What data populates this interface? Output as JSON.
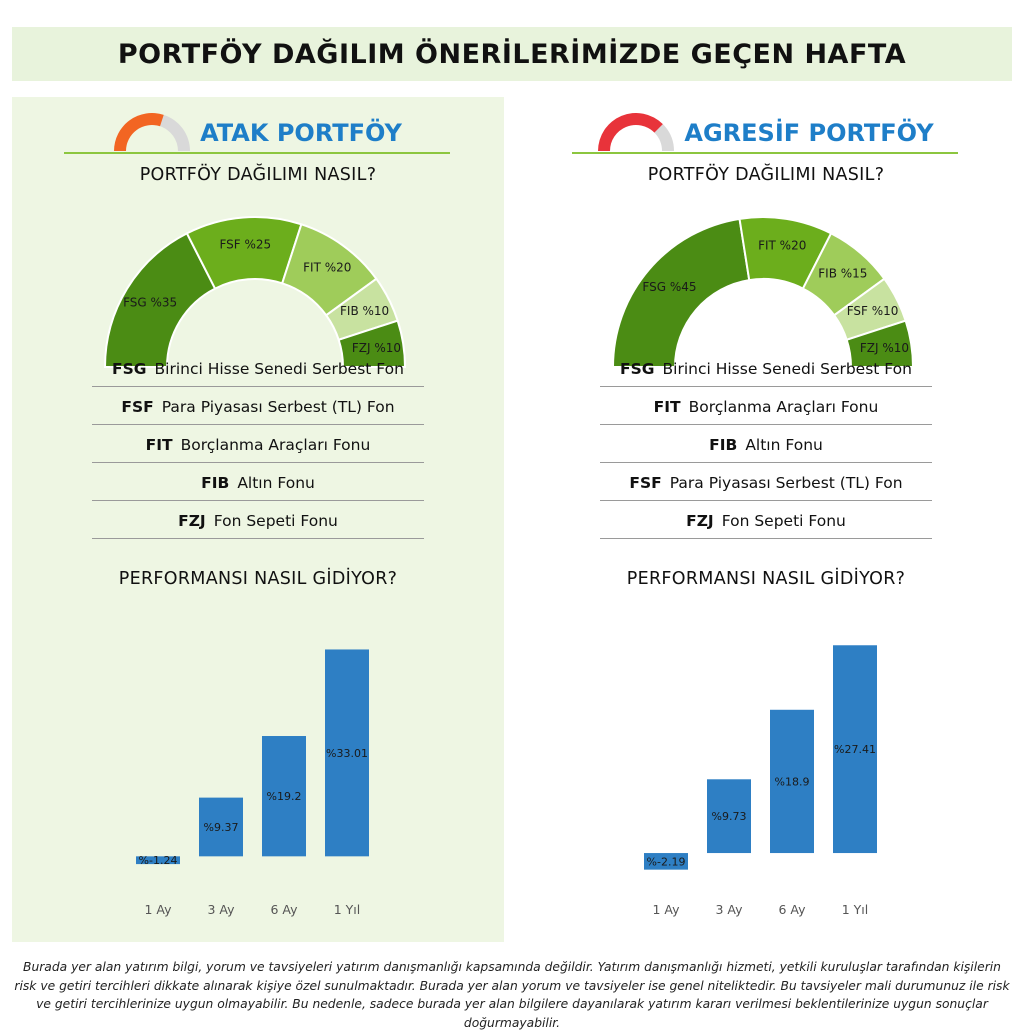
{
  "header": {
    "title": "PORTFÖY DAĞILIM ÖNERİLERİMİZDE GEÇEN HAFTA"
  },
  "panels": [
    {
      "title": "ATAK PORTFÖY",
      "icon": "gauge-icon",
      "icon_colors": [
        "#f26522",
        "#d9d9d9"
      ],
      "icon_fill_fraction": 0.6,
      "allocation_heading": "PORTFÖY DAĞILIMI NASIL?",
      "legend": [
        {
          "code": "FSG",
          "name": "Birinci Hisse Senedi Serbest Fon"
        },
        {
          "code": "FSF",
          "name": "Para Piyasası Serbest (TL) Fon"
        },
        {
          "code": "FIT",
          "name": "Borçlanma Araçları Fonu"
        },
        {
          "code": "FIB",
          "name": "Altın Fonu"
        },
        {
          "code": "FZJ",
          "name": "Fon Sepeti Fonu"
        }
      ],
      "performance_heading": "PERFORMANSI NASIL GİDİYOR?"
    },
    {
      "title": "AGRESİF PORTFÖY",
      "icon": "gauge-icon",
      "icon_colors": [
        "#e8333a",
        "#d9d9d9"
      ],
      "icon_fill_fraction": 0.75,
      "allocation_heading": "PORTFÖY DAĞILIMI NASIL?",
      "legend": [
        {
          "code": "FSG",
          "name": "Birinci Hisse Senedi Serbest Fon"
        },
        {
          "code": "FIT",
          "name": "Borçlanma Araçları Fonu"
        },
        {
          "code": "FIB",
          "name": "Altın Fonu"
        },
        {
          "code": "FSF",
          "name": "Para Piyasası Serbest (TL) Fon"
        },
        {
          "code": "FZJ",
          "name": "Fon Sepeti Fonu"
        }
      ],
      "performance_heading": "PERFORMANSI NASIL GİDİYOR?"
    }
  ],
  "chart_data": [
    {
      "type": "pie",
      "subtype": "half-donut",
      "categories": [
        "FSG",
        "FSF",
        "FIT",
        "FIB",
        "FZJ"
      ],
      "values": [
        35,
        25,
        20,
        10,
        10
      ],
      "labels": [
        "FSG %35",
        "FSF %25",
        "FIT %20",
        "FIB %10",
        "FZJ %10"
      ],
      "colors": [
        "#4b8c14",
        "#6cae1c",
        "#9fcc5a",
        "#c8e2a0",
        "#4b8c14"
      ]
    },
    {
      "type": "pie",
      "subtype": "half-donut",
      "categories": [
        "FSG",
        "FIT",
        "FIB",
        "FSF",
        "FZJ"
      ],
      "values": [
        45,
        20,
        15,
        10,
        10
      ],
      "labels": [
        "FSG %45",
        "FIT %20",
        "FIB %15",
        "FSF %10",
        "FZJ %10"
      ],
      "colors": [
        "#4b8c14",
        "#6cae1c",
        "#9fcc5a",
        "#c8e2a0",
        "#4b8c14"
      ]
    },
    {
      "type": "bar",
      "categories": [
        "1 Ay",
        "3 Ay",
        "6 Ay",
        "1 Yıl"
      ],
      "values": [
        -1.24,
        9.37,
        19.2,
        33.01
      ],
      "labels": [
        "%-1.24",
        "%9.37",
        "%19.2",
        "%33.01"
      ],
      "ylim": [
        -2.5,
        35
      ],
      "color": "#2e7fc4",
      "grid": false
    },
    {
      "type": "bar",
      "categories": [
        "1 Ay",
        "3 Ay",
        "6 Ay",
        "1 Yıl"
      ],
      "values": [
        -2.19,
        9.73,
        18.9,
        27.41
      ],
      "labels": [
        "%-2.19",
        "%9.73",
        "%18.9",
        "%27.41"
      ],
      "ylim": [
        -2.5,
        28.5
      ],
      "color": "#2e7fc4",
      "grid": false
    }
  ],
  "disclaimer": "Burada yer alan yatırım bilgi, yorum ve tavsiyeleri yatırım danışmanlığı kapsamında değildir. Yatırım danışmanlığı hizmeti, yetkili kuruluşlar tarafından kişilerin risk ve getiri tercihleri dikkate alınarak kişiye özel sunulmaktadır. Burada yer alan yorum ve tavsiyeler ise genel niteliktedir. Bu tavsiyeler mali durumunuz ile risk ve getiri tercihlerinize uygun olmayabilir. Bu nedenle, sadece burada yer alan bilgilere dayanılarak yatırım kararı verilmesi beklentilerinize uygun sonuçlar doğurmayabilir."
}
